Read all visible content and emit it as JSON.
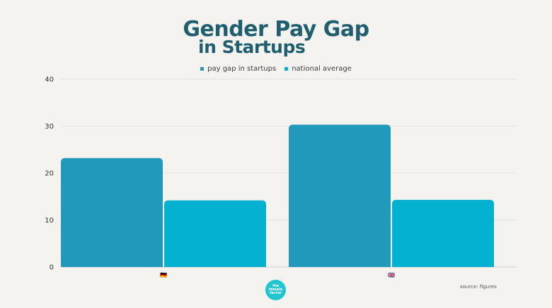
{
  "title_line1": "Gender Pay Gap",
  "title_line2": "in Startups",
  "source": "source: figures",
  "logo_text": "the female factor",
  "chart_data": {
    "type": "bar",
    "categories": [
      "🇩🇪",
      "🇬🇧"
    ],
    "series": [
      {
        "name": "pay gap in startups",
        "values": [
          23.2,
          30.3
        ],
        "color": "#2199bb"
      },
      {
        "name": "national average",
        "values": [
          14.2,
          14.3
        ],
        "color": "#05b1d0"
      }
    ],
    "ylim": [
      0,
      40
    ],
    "yticks": [
      0,
      10,
      20,
      30,
      40
    ],
    "grid": true,
    "legend": "top-center"
  }
}
